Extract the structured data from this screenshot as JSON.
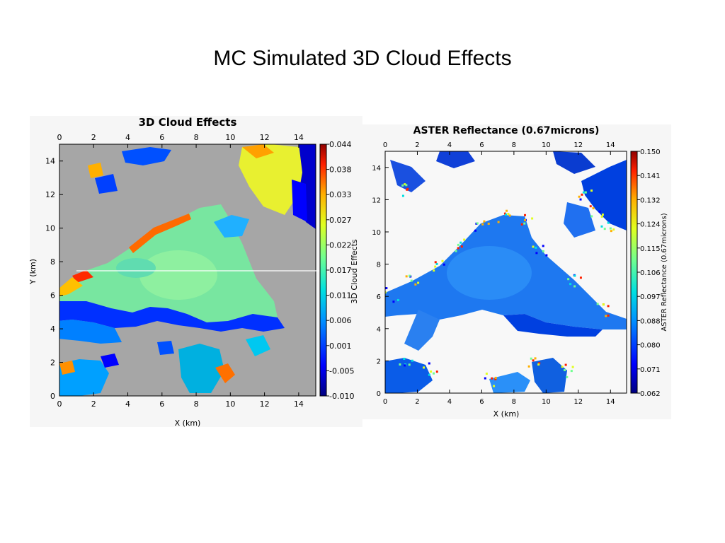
{
  "slide": {
    "title": "MC Simulated 3D Cloud Effects"
  },
  "chart_data": [
    {
      "type": "heatmap",
      "title": "3D Cloud Effects",
      "xlabel": "X (km)",
      "ylabel": "Y (km)",
      "xlim": [
        0,
        15
      ],
      "ylim": [
        0,
        15
      ],
      "xticks": [
        "0",
        "2",
        "4",
        "6",
        "8",
        "10",
        "12",
        "14"
      ],
      "yticks": [
        "0",
        "2",
        "4",
        "6",
        "8",
        "10",
        "12",
        "14"
      ],
      "colorbar": {
        "label": "3D Cloud Effects",
        "min": -0.01,
        "max": 0.044,
        "ticks": [
          "0.044",
          "0.038",
          "0.033",
          "0.027",
          "0.022",
          "0.017",
          "0.011",
          "0.006",
          "0.001",
          "-0.005",
          "-0.010"
        ]
      },
      "background_color": "#a6a6a6"
    },
    {
      "type": "heatmap",
      "title": "ASTER Reflectance (0.67microns)",
      "xlabel": "X (km)",
      "ylabel": "",
      "xlim": [
        0,
        15
      ],
      "ylim": [
        0,
        15
      ],
      "xticks": [
        "0",
        "2",
        "4",
        "6",
        "8",
        "10",
        "12",
        "14"
      ],
      "yticks": [
        "0",
        "2",
        "4",
        "6",
        "8",
        "10",
        "12",
        "14"
      ],
      "colorbar": {
        "label": "ASTER Reflectance (0.67microns)",
        "min": 0.062,
        "max": 0.15,
        "ticks": [
          "0.150",
          "0.141",
          "0.132",
          "0.124",
          "0.115",
          "0.106",
          "0.097",
          "0.088",
          "0.080",
          "0.071",
          "0.062"
        ]
      },
      "background_color": "#f8f8f8"
    }
  ]
}
